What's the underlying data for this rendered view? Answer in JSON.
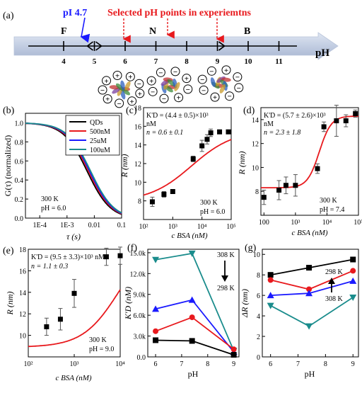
{
  "panels": {
    "a": {
      "label": "(a)",
      "pi_label": "pI 4.7",
      "selected_label": "Selected pH points in experiemtns",
      "axis_label": "pH",
      "ticks": [
        "4",
        "5",
        "6",
        "7",
        "8",
        "9",
        "10",
        "11"
      ],
      "region_labels": [
        "F",
        "N",
        "B"
      ],
      "charges": {
        "pos": "+",
        "neg": "−"
      }
    },
    "b": {
      "label": "(b)",
      "ylabel": "G(τ) (normalized)",
      "xlabel": "τ (s)",
      "xticks": [
        "1E-4",
        "1E-3",
        "0.01",
        "0.1"
      ],
      "yticks": [
        "0.0",
        "0.2",
        "0.4",
        "0.6",
        "0.8",
        "1.0"
      ],
      "legend": [
        "QDs",
        "500nM",
        "25uM",
        "100uM"
      ],
      "legend_colors": [
        "#000000",
        "#e8191d",
        "#1a1aff",
        "#1a8c8c"
      ],
      "condition": [
        "300 K",
        "pH = 6.0"
      ]
    },
    "c": {
      "label": "(c)",
      "kd_text": "K'D = (4.4 ± 0.5)×10³",
      "kd_unit": "nM",
      "n_text": "n = 0.6 ± 0.1",
      "ylabel": "R (nm)",
      "xlabel": "c BSA (nM)",
      "yticks": [
        "8",
        "10",
        "12",
        "14",
        "16",
        "18"
      ],
      "xticks": [
        "10²",
        "10³",
        "10⁴",
        "10⁵"
      ],
      "condition": [
        "300 K",
        "pH = 6.0"
      ]
    },
    "d": {
      "label": "(d)",
      "kd_text": "K'D = (5.7 ± 2.6)×10³",
      "kd_unit": "nM",
      "n_text": "n = 2.3 ± 1.8",
      "ylabel": "R (nm)",
      "xlabel": "c BSA (nM)",
      "yticks": [
        "8",
        "10",
        "12",
        "14"
      ],
      "xticks": [
        "100",
        "10³",
        "10⁴",
        "10⁵"
      ],
      "condition": [
        "300 K",
        "pH = 7.4"
      ]
    },
    "e": {
      "label": "(e)",
      "kd_text": "K'D = (9.5 ± 3.3)×10³ nM",
      "n_text": "n = 1.1 ± 0.3",
      "ylabel": "R (nm)",
      "xlabel": "c BSA (nM)",
      "yticks": [
        "10",
        "12",
        "14",
        "16",
        "18"
      ],
      "xticks": [
        "10²",
        "10³",
        "10⁴"
      ],
      "condition": [
        "300 K",
        "pH = 9.0"
      ]
    },
    "f": {
      "label": "(f)",
      "ylabel": "K'D (nM)",
      "xlabel": "pH",
      "yticks": [
        "0.0",
        "3.0k",
        "6.0k",
        "9.0k",
        "12.0k",
        "15.0k"
      ],
      "xticks": [
        "6",
        "7",
        "8",
        "9"
      ],
      "temp_top": "308 K",
      "temp_bottom": "298 K"
    },
    "g": {
      "label": "(g)",
      "ylabel": "ΔR (nm)",
      "xlabel": "pH",
      "yticks": [
        "0",
        "2",
        "4",
        "6",
        "8",
        "10"
      ],
      "xticks": [
        "6",
        "7",
        "8",
        "9"
      ],
      "temp_top": "298 K",
      "temp_bottom": "308 K"
    }
  },
  "chart_data": [
    {
      "panel": "b",
      "type": "line",
      "xlim": [
        3e-05,
        0.1
      ],
      "ylim": [
        0,
        1.1
      ],
      "xscale": "log",
      "series": [
        {
          "name": "QDs",
          "color": "#000000",
          "tau_d": 0.0055
        },
        {
          "name": "500nM",
          "color": "#e8191d",
          "tau_d": 0.0062
        },
        {
          "name": "25uM",
          "color": "#1a1aff",
          "tau_d": 0.0068
        },
        {
          "name": "100uM",
          "color": "#1a8c8c",
          "tau_d": 0.0074
        }
      ]
    },
    {
      "panel": "c",
      "type": "scatter",
      "xscale": "log",
      "xlim": [
        100,
        100000
      ],
      "ylim": [
        6,
        18
      ],
      "x": [
        200,
        500,
        1000,
        5000,
        10000,
        15000,
        20000,
        40000,
        80000
      ],
      "y": [
        7.9,
        8.7,
        9.0,
        12.5,
        13.9,
        14.6,
        15.3,
        15.4,
        15.4
      ],
      "err": [
        0.5,
        0.3,
        0.2,
        0.3,
        0.6,
        0.5,
        0.4,
        0.2,
        0.2
      ],
      "fit": {
        "r0": 7.9,
        "r1": 15.6,
        "kd": 4400,
        "n": 0.6
      }
    },
    {
      "panel": "d",
      "type": "scatter",
      "xscale": "log",
      "xlim": [
        80,
        100000
      ],
      "ylim": [
        6,
        15
      ],
      "x": [
        100,
        300,
        500,
        1000,
        5000,
        8000,
        20000,
        40000,
        80000
      ],
      "y": [
        7.5,
        8.1,
        8.5,
        8.5,
        9.9,
        13.4,
        13.9,
        13.9,
        14.5
      ],
      "err": [
        0.6,
        0.8,
        0.7,
        0.9,
        0.4,
        0.4,
        1.3,
        0.5,
        0.3
      ],
      "fit": {
        "r0": 8.3,
        "r1": 14.3,
        "kd": 5700,
        "n": 2.3
      }
    },
    {
      "panel": "e",
      "type": "scatter",
      "xscale": "log",
      "xlim": [
        100,
        10000
      ],
      "ylim": [
        8,
        18
      ],
      "x": [
        250,
        500,
        1000,
        5000,
        10000
      ],
      "y": [
        10.8,
        11.5,
        13.9,
        17.3,
        17.4
      ],
      "err": [
        0.8,
        1.0,
        1.3,
        0.8,
        0.8
      ],
      "fit": {
        "r0": 8.9,
        "r1": 19.3,
        "kd": 9500,
        "n": 1.1
      }
    },
    {
      "panel": "f",
      "type": "line",
      "x": [
        6.0,
        7.4,
        9.0
      ],
      "ylim": [
        0,
        15500
      ],
      "xlim": [
        5.7,
        9.2
      ],
      "series": [
        {
          "color": "#1a8c8c",
          "marker": "triangle-down",
          "values": [
            14000,
            14900,
            900
          ]
        },
        {
          "color": "#1a1aff",
          "marker": "triangle-up",
          "values": [
            6900,
            8200,
            700
          ]
        },
        {
          "color": "#e8191d",
          "marker": "circle",
          "values": [
            3700,
            5700,
            1100
          ]
        },
        {
          "color": "#000000",
          "marker": "square",
          "values": [
            2400,
            2300,
            300
          ]
        }
      ]
    },
    {
      "panel": "g",
      "type": "line",
      "x": [
        6.0,
        7.4,
        9.0
      ],
      "ylim": [
        0,
        10.5
      ],
      "xlim": [
        5.7,
        9.2
      ],
      "series": [
        {
          "color": "#000000",
          "marker": "square",
          "values": [
            8.0,
            8.7,
            9.5
          ]
        },
        {
          "color": "#e8191d",
          "marker": "circle",
          "values": [
            7.5,
            6.6,
            8.4
          ]
        },
        {
          "color": "#1a1aff",
          "marker": "triangle-up",
          "values": [
            6.0,
            6.2,
            7.4
          ]
        },
        {
          "color": "#1a8c8c",
          "marker": "triangle-down",
          "values": [
            5.0,
            3.0,
            5.8
          ]
        }
      ]
    }
  ]
}
